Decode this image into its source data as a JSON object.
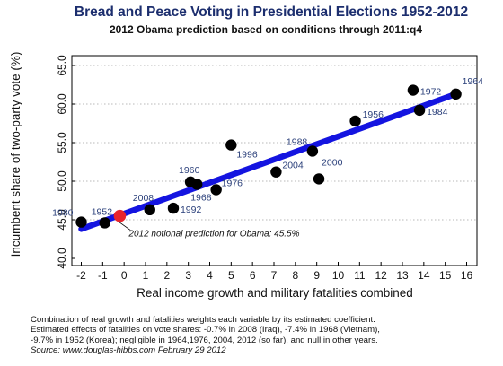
{
  "chart_data": {
    "type": "scatter",
    "title": "Bread and Peace Voting in Presidential Elections 1952-2012",
    "subtitle": "2012 Obama prediction based on conditions through 2011:q4",
    "xlabel": "Real income growth and military fatalities combined",
    "ylabel": "Incumbent share of two-party vote (%)",
    "xlim": [
      -2.5,
      16.5
    ],
    "ylim": [
      39.5,
      65.5
    ],
    "x_ticks": [
      -2,
      -1,
      0,
      1,
      2,
      3,
      4,
      5,
      6,
      7,
      8,
      9,
      10,
      11,
      12,
      13,
      14,
      15,
      16
    ],
    "y_ticks": [
      40.0,
      45.0,
      50.0,
      55.0,
      60.0,
      65.0
    ],
    "y_tick_labels": [
      "40.0",
      "45.0",
      "50.0",
      "55.0",
      "60.0",
      "65.0"
    ],
    "grid": "horizontal dotted",
    "points": [
      {
        "label": "1980",
        "x": -2.0,
        "y": 44.7
      },
      {
        "label": "1952",
        "x": -0.9,
        "y": 44.6
      },
      {
        "label": "2008",
        "x": 1.2,
        "y": 46.3
      },
      {
        "label": "1992",
        "x": 2.3,
        "y": 46.5
      },
      {
        "label": "1960",
        "x": 3.1,
        "y": 49.9
      },
      {
        "label": "1968",
        "x": 3.4,
        "y": 49.6
      },
      {
        "label": "1976",
        "x": 4.3,
        "y": 48.9
      },
      {
        "label": "1996",
        "x": 5.0,
        "y": 54.7
      },
      {
        "label": "2004",
        "x": 7.1,
        "y": 51.2
      },
      {
        "label": "1988",
        "x": 8.8,
        "y": 53.9
      },
      {
        "label": "2000",
        "x": 9.1,
        "y": 50.3
      },
      {
        "label": "1956",
        "x": 10.8,
        "y": 57.8
      },
      {
        "label": "1972",
        "x": 13.5,
        "y": 61.8
      },
      {
        "label": "1984",
        "x": 13.8,
        "y": 59.2
      },
      {
        "label": "1964",
        "x": 15.5,
        "y": 61.3
      }
    ],
    "fit_line": {
      "x": [
        -2.0,
        15.6
      ],
      "y": [
        43.8,
        61.4
      ]
    },
    "prediction": {
      "label": "2012 notional prediction for Obama: 45.5%",
      "x": -0.2,
      "y": 45.5
    },
    "colors": {
      "points": "#000000",
      "fit_line": "#1414e0",
      "prediction": "#e8242c",
      "grid": "#b8b8b8"
    }
  },
  "notes": {
    "line1": "Combination of real growth and fatalities weights each variable by its estimated coefficient.",
    "line2": "Estimated effects of fatalities on vote shares: -0.7% in 2008 (Iraq), -7.4% in 1968 (Vietnam),",
    "line3": "-9.7% in 1952 (Korea); negligible in 1964,1976, 2004, 2012 (so far), and null in other years.",
    "source": "Source: www.douglas-hibbs.com February 29 2012"
  }
}
